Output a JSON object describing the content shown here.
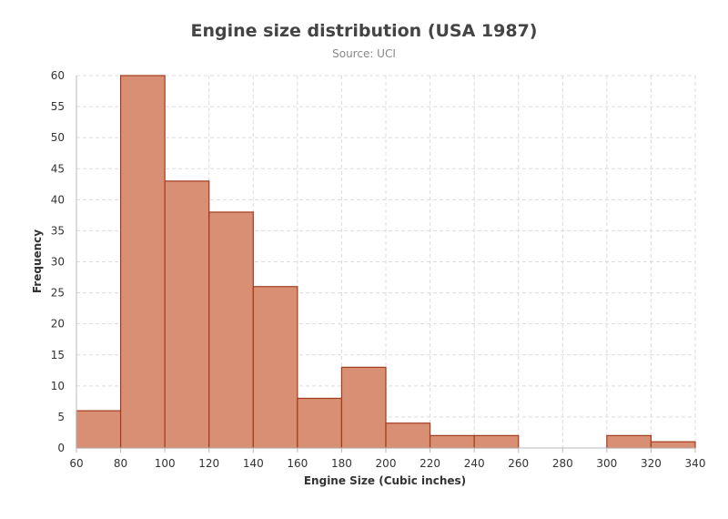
{
  "chart_data": {
    "type": "bar",
    "title": "Engine size distribution (USA 1987)",
    "subtitle": "Source: UCI",
    "xlabel": "Engine Size (Cubic inches)",
    "ylabel": "Frequency",
    "xlim": [
      60,
      340
    ],
    "ylim": [
      0,
      60
    ],
    "x_ticks": [
      60,
      80,
      100,
      120,
      140,
      160,
      180,
      200,
      220,
      240,
      260,
      280,
      300,
      320,
      340
    ],
    "y_ticks": [
      0,
      5,
      10,
      15,
      20,
      25,
      30,
      35,
      40,
      45,
      50,
      55,
      60
    ],
    "grid": true,
    "bins": [
      {
        "start": 60,
        "end": 80,
        "value": 6
      },
      {
        "start": 80,
        "end": 100,
        "value": 60
      },
      {
        "start": 100,
        "end": 120,
        "value": 43
      },
      {
        "start": 120,
        "end": 140,
        "value": 38
      },
      {
        "start": 140,
        "end": 160,
        "value": 26
      },
      {
        "start": 160,
        "end": 180,
        "value": 8
      },
      {
        "start": 180,
        "end": 200,
        "value": 13
      },
      {
        "start": 200,
        "end": 220,
        "value": 4
      },
      {
        "start": 220,
        "end": 240,
        "value": 2
      },
      {
        "start": 240,
        "end": 260,
        "value": 2
      },
      {
        "start": 300,
        "end": 320,
        "value": 2
      },
      {
        "start": 320,
        "end": 340,
        "value": 1
      }
    ],
    "colors": {
      "bar_fill": "#d98f73",
      "bar_stroke": "#a23b1c"
    }
  }
}
